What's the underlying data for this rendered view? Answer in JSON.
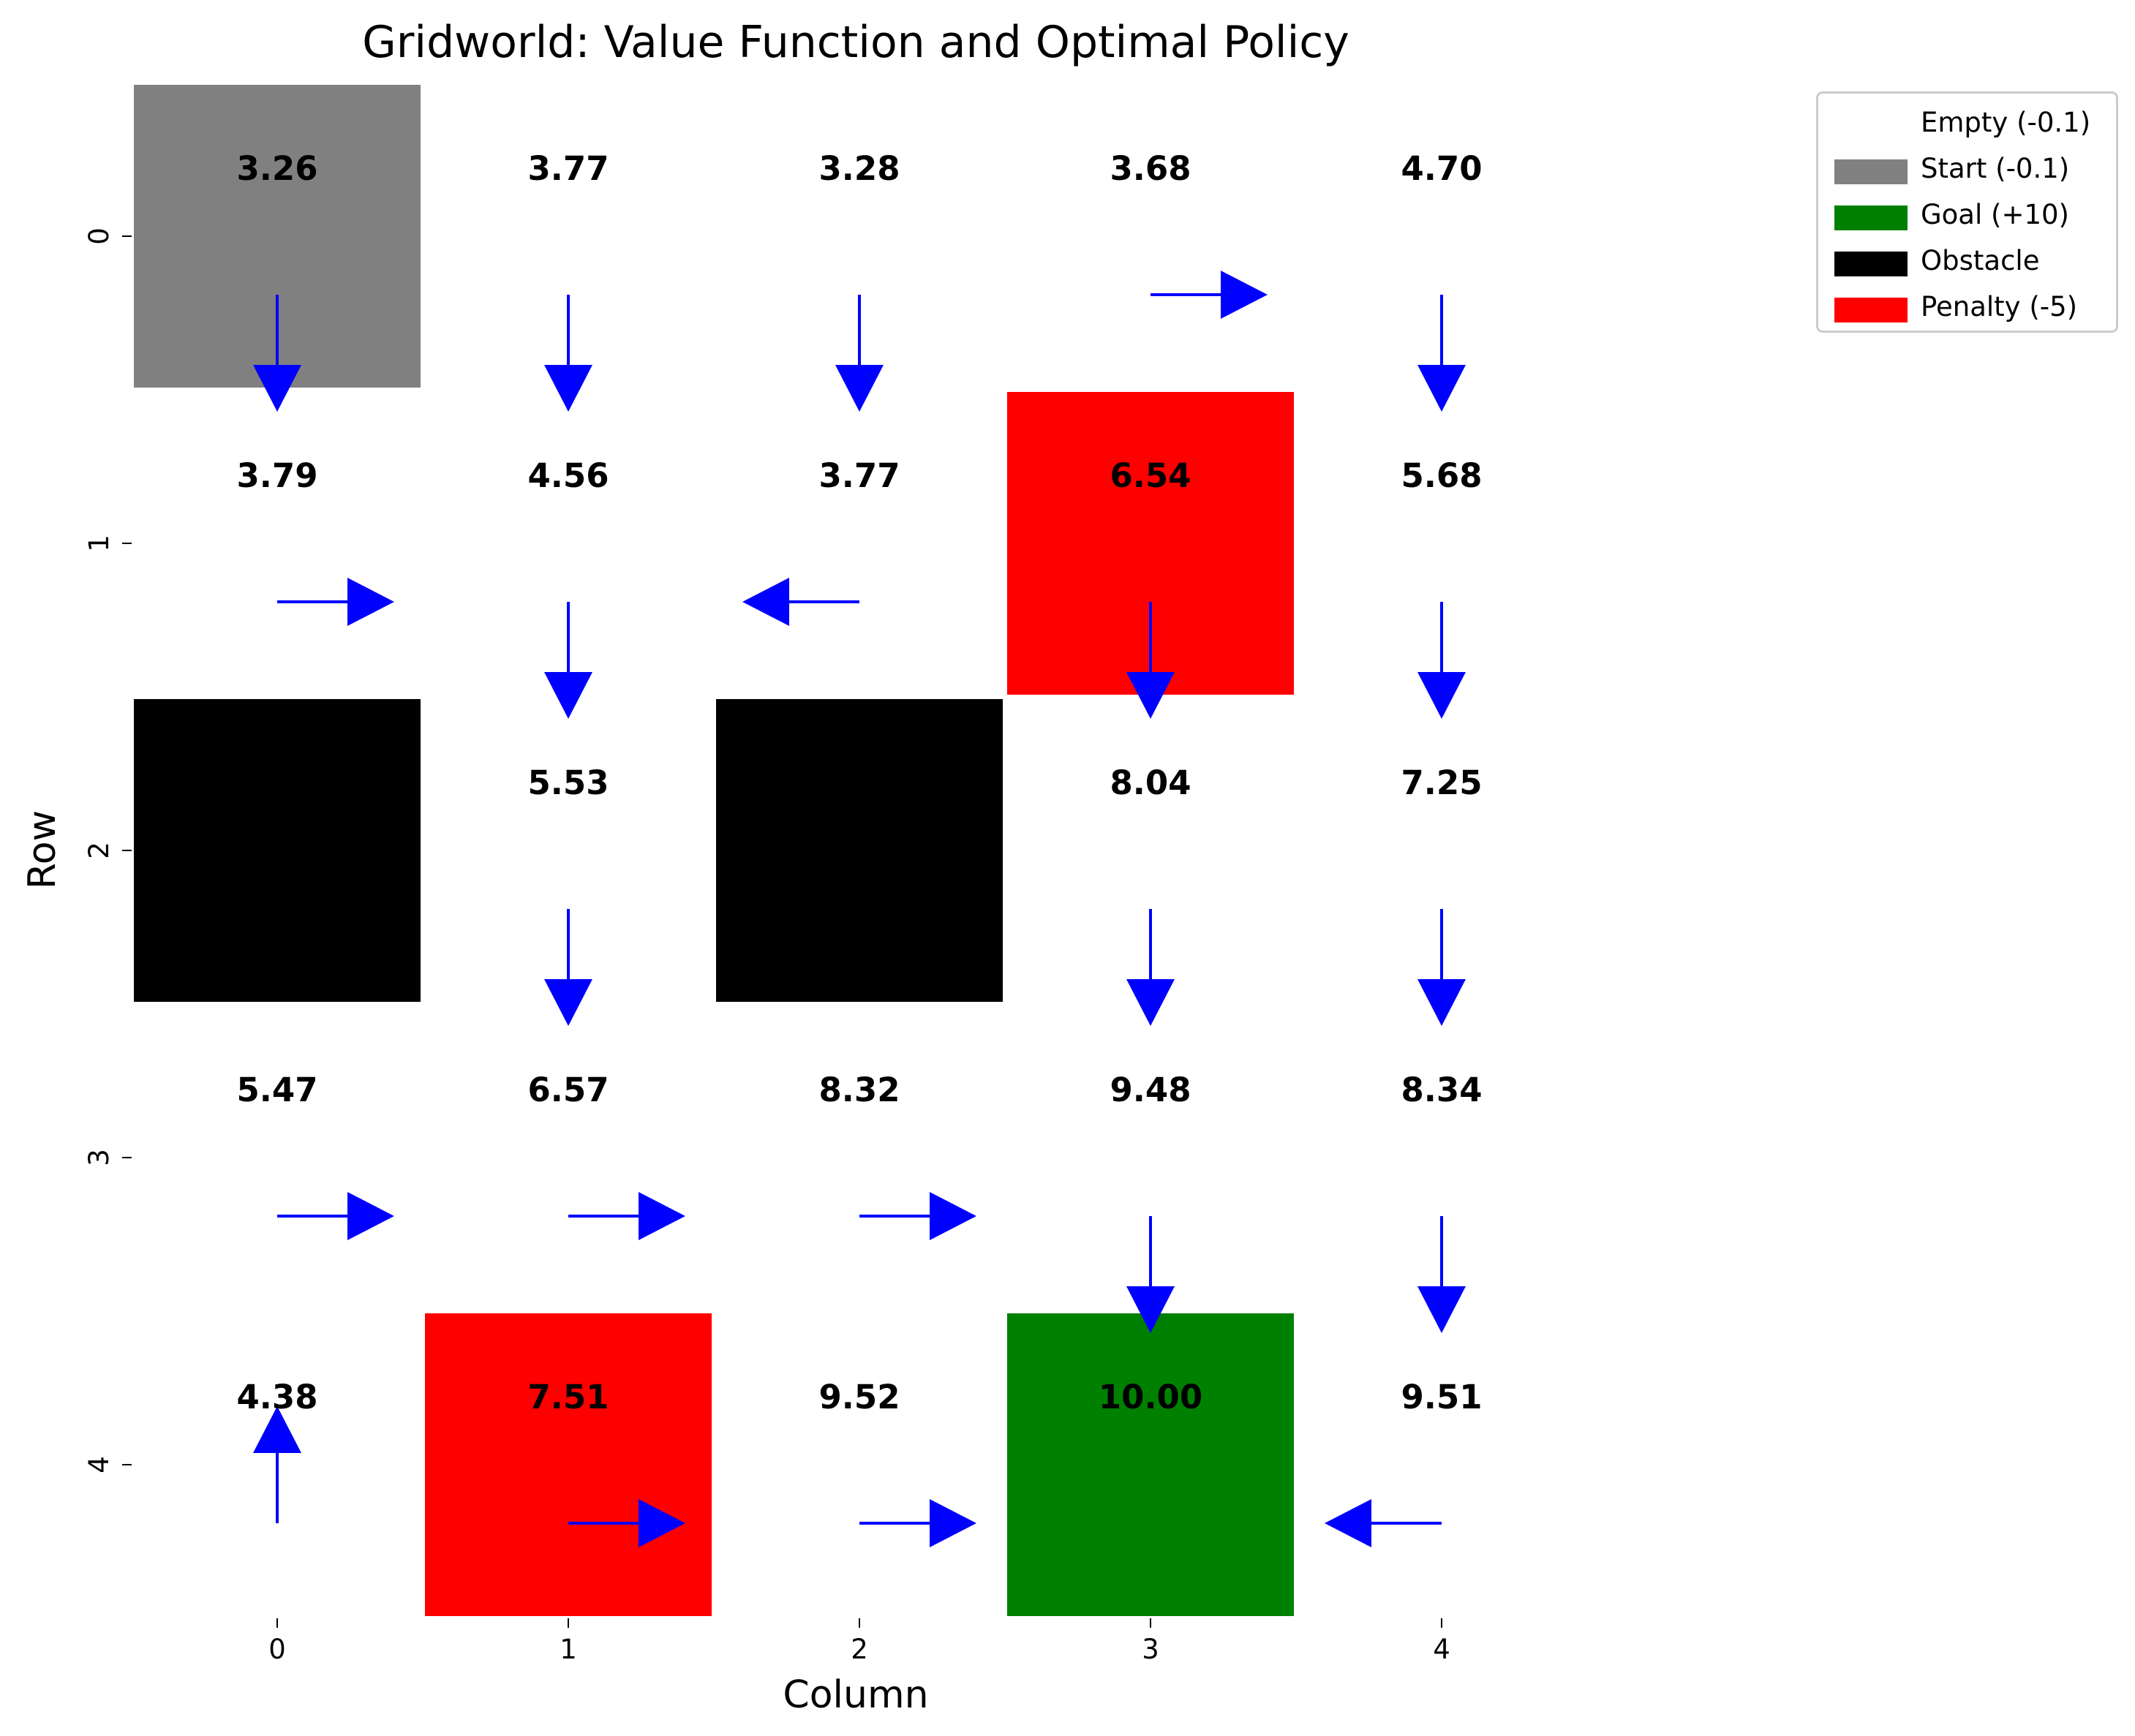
{
  "chart_data": {
    "type": "heatmap",
    "title": "Gridworld: Value Function and Optimal Policy",
    "xlabel": "Column",
    "ylabel": "Row",
    "x_ticks": [
      "0",
      "1",
      "2",
      "3",
      "4"
    ],
    "y_ticks": [
      "0",
      "1",
      "2",
      "3",
      "4"
    ],
    "grid_size": [
      5,
      5
    ],
    "legend_position": "outside-top-right",
    "cell_colors": {
      "empty": "#ffffff",
      "start": "#808080",
      "goal": "#008000",
      "obstacle": "#000000",
      "penalty": "#ff0000"
    },
    "arrow_color": "#0000ff",
    "cells": [
      [
        "start",
        "empty",
        "empty",
        "empty",
        "empty"
      ],
      [
        "empty",
        "empty",
        "empty",
        "penalty",
        "empty"
      ],
      [
        "obstacle",
        "empty",
        "obstacle",
        "empty",
        "empty"
      ],
      [
        "empty",
        "empty",
        "empty",
        "empty",
        "empty"
      ],
      [
        "empty",
        "penalty",
        "empty",
        "goal",
        "empty"
      ]
    ],
    "values": [
      [
        "3.26",
        "3.77",
        "3.28",
        "3.68",
        "4.70"
      ],
      [
        "3.79",
        "4.56",
        "3.77",
        "6.54",
        "5.68"
      ],
      [
        null,
        "5.53",
        null,
        "8.04",
        "7.25"
      ],
      [
        "5.47",
        "6.57",
        "8.32",
        "9.48",
        "8.34"
      ],
      [
        "4.38",
        "7.51",
        "9.52",
        "10.00",
        "9.51"
      ]
    ],
    "policy": [
      [
        "down",
        "down",
        "down",
        "right",
        "down"
      ],
      [
        "right",
        "down",
        "left",
        "down",
        "down"
      ],
      [
        null,
        "down",
        null,
        "down",
        "down"
      ],
      [
        "right",
        "right",
        "right",
        "down",
        "down"
      ],
      [
        "up",
        "right",
        "right",
        null,
        "left"
      ]
    ],
    "legend": [
      {
        "label": "Empty (-0.1)",
        "color": "#ffffff"
      },
      {
        "label": "Start (-0.1)",
        "color": "#808080"
      },
      {
        "label": "Goal (+10)",
        "color": "#008000"
      },
      {
        "label": "Obstacle",
        "color": "#000000"
      },
      {
        "label": "Penalty (-5)",
        "color": "#ff0000"
      }
    ]
  }
}
